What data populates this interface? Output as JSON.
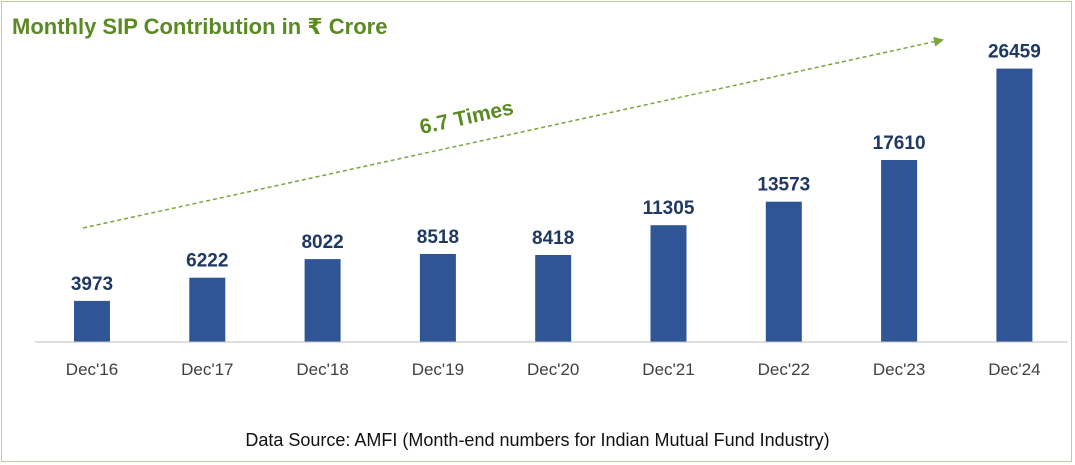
{
  "chart_data": {
    "type": "bar",
    "title": "Monthly SIP Contribution in ₹ Crore",
    "categories": [
      "Dec'16",
      "Dec'17",
      "Dec'18",
      "Dec'19",
      "Dec'20",
      "Dec'21",
      "Dec'22",
      "Dec'23",
      "Dec'24"
    ],
    "values": [
      3973,
      6222,
      8022,
      8518,
      8418,
      11305,
      13573,
      17610,
      26459
    ],
    "ylim": [
      0,
      30000
    ],
    "xlabel": "",
    "ylabel": "",
    "grid": false,
    "legend": "none",
    "annotation": "6.7 Times",
    "source": "Data Source: AMFI (Month-end numbers for Indian Mutual Fund Industry)"
  },
  "colors": {
    "bar": "#2f5597",
    "value_label": "#1f3864",
    "title": "#5a8a22",
    "arrow": "#7aa53a",
    "axis": "#bfbfbf"
  }
}
